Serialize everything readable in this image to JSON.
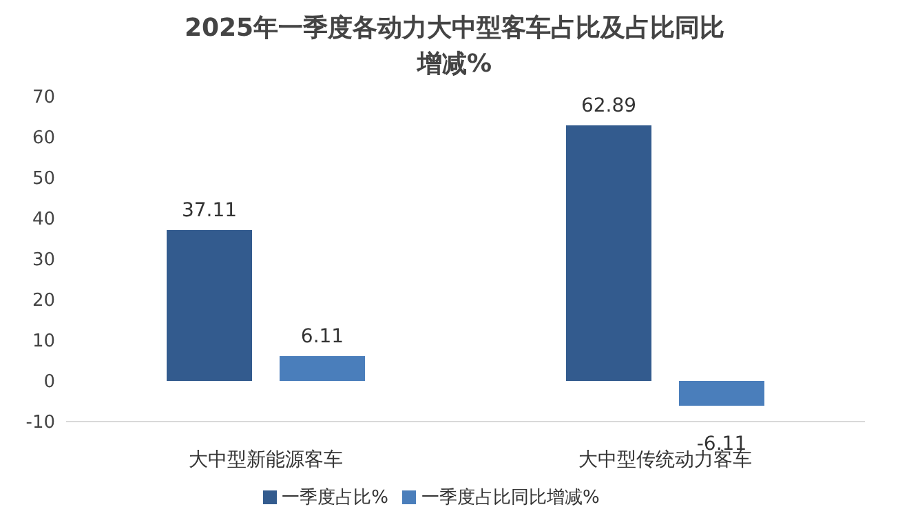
{
  "chart_data": {
    "type": "bar",
    "title": "2025年一季度各动力大中型客车占比及占比同比增减%",
    "categories": [
      "大中型新能源客车",
      "大中型传统动力客车"
    ],
    "series": [
      {
        "name": "一季度占比%",
        "color": "#335b8e",
        "values": [
          37.11,
          62.89
        ]
      },
      {
        "name": "一季度占比同比增减%",
        "color": "#4a7ebb",
        "values": [
          6.11,
          -6.11
        ]
      }
    ],
    "ylim": [
      -10,
      70
    ],
    "yticks": [
      -10,
      0,
      10,
      20,
      30,
      40,
      50,
      60,
      70
    ],
    "grid": false,
    "legend": "bottom",
    "data_labels": true
  }
}
